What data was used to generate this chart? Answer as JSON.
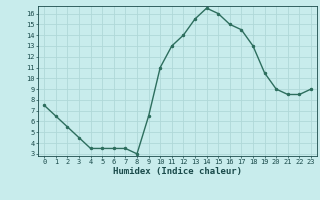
{
  "x": [
    0,
    1,
    2,
    3,
    4,
    5,
    6,
    7,
    8,
    9,
    10,
    11,
    12,
    13,
    14,
    15,
    16,
    17,
    18,
    19,
    20,
    21,
    22,
    23
  ],
  "y": [
    7.5,
    6.5,
    5.5,
    4.5,
    3.5,
    3.5,
    3.5,
    3.5,
    3.0,
    6.5,
    11.0,
    13.0,
    14.0,
    15.5,
    16.5,
    16.0,
    15.0,
    14.5,
    13.0,
    10.5,
    9.0,
    8.5,
    8.5,
    9.0
  ],
  "xlabel": "Humidex (Indice chaleur)",
  "xlim": [
    -0.5,
    23.5
  ],
  "ylim": [
    2.8,
    16.7
  ],
  "yticks": [
    3,
    4,
    5,
    6,
    7,
    8,
    9,
    10,
    11,
    12,
    13,
    14,
    15,
    16
  ],
  "xticks": [
    0,
    1,
    2,
    3,
    4,
    5,
    6,
    7,
    8,
    9,
    10,
    11,
    12,
    13,
    14,
    15,
    16,
    17,
    18,
    19,
    20,
    21,
    22,
    23
  ],
  "line_color": "#2d6e5e",
  "marker_color": "#2d6e5e",
  "bg_color": "#c8ecec",
  "grid_color": "#b0d8d8",
  "tick_color": "#1a4a4a",
  "xlabel_color": "#1a4a4a",
  "tick_fontsize": 5,
  "xlabel_fontsize": 6.5,
  "linewidth": 1.0,
  "markersize": 3
}
